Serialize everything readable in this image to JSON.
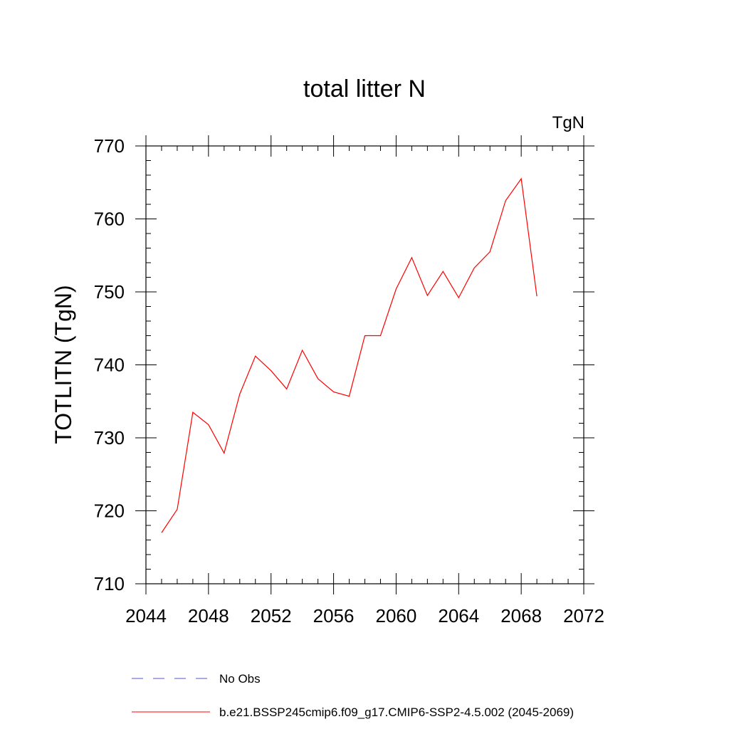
{
  "chart_data": {
    "type": "line",
    "title": "total litter N",
    "units": "TgN",
    "ylabel": "TOTLITN  (TgN)",
    "xlabel": "",
    "xlim": [
      2044,
      2072
    ],
    "ylim": [
      710,
      770
    ],
    "xticks": [
      2044,
      2048,
      2052,
      2056,
      2060,
      2064,
      2068,
      2072
    ],
    "yticks": [
      710,
      720,
      730,
      740,
      750,
      760,
      770
    ],
    "grid": false,
    "legend_position": "bottom",
    "series": [
      {
        "name": "b.e21.BSSP245cmip6.f09_g17.CMIP6-SSP2-4.5.002 (2045-2069)",
        "color": "#ff0000",
        "style": "solid",
        "x": [
          2045,
          2046,
          2047,
          2048,
          2049,
          2050,
          2051,
          2052,
          2053,
          2054,
          2055,
          2056,
          2057,
          2058,
          2059,
          2060,
          2061,
          2062,
          2063,
          2064,
          2065,
          2066,
          2067,
          2068,
          2069
        ],
        "values": [
          717.0,
          720.2,
          733.5,
          731.8,
          727.9,
          736.0,
          741.2,
          739.2,
          736.7,
          742.0,
          738.1,
          736.3,
          735.7,
          744.0,
          744.0,
          750.4,
          754.7,
          749.5,
          752.8,
          749.2,
          753.3,
          755.5,
          762.5,
          765.5,
          749.4
        ]
      },
      {
        "name": "No Obs",
        "color": "#5555cc",
        "style": "dashed",
        "x": [],
        "values": []
      }
    ]
  }
}
